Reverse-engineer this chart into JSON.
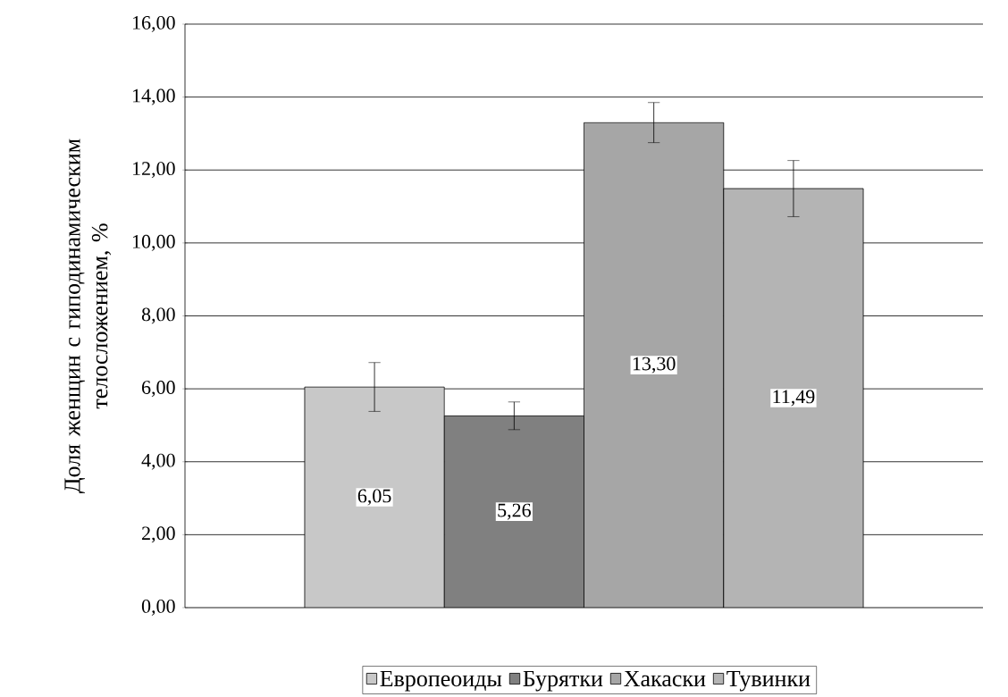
{
  "chart_data": {
    "type": "bar",
    "ylabel": "Доля женщин с гиподинамическим телосложением, %",
    "categories": [
      null
    ],
    "series": [
      {
        "name": "Европеоиды",
        "color": "#c8c8c8",
        "values": [
          6.05
        ],
        "errors": [
          0.67
        ],
        "value_labels": [
          "6,05"
        ]
      },
      {
        "name": "Бурятки",
        "color": "#808080",
        "values": [
          5.26
        ],
        "errors": [
          0.38
        ],
        "value_labels": [
          "5,26"
        ]
      },
      {
        "name": "Хакаски",
        "color": "#a6a6a6",
        "values": [
          13.3
        ],
        "errors": [
          0.55
        ],
        "value_labels": [
          "13,30"
        ]
      },
      {
        "name": "Тувинки",
        "color": "#b4b4b4",
        "values": [
          11.49
        ],
        "errors": [
          0.77
        ],
        "value_labels": [
          "11,49"
        ]
      }
    ],
    "ylim": [
      0,
      16
    ],
    "yticks": [
      {
        "value": 0,
        "label": "0,00"
      },
      {
        "value": 2,
        "label": "2,00"
      },
      {
        "value": 4,
        "label": "4,00"
      },
      {
        "value": 6,
        "label": "6,00"
      },
      {
        "value": 8,
        "label": "8,00"
      },
      {
        "value": 10,
        "label": "10,00"
      },
      {
        "value": 12,
        "label": "12,00"
      },
      {
        "value": 14,
        "label": "14,00"
      },
      {
        "value": 16,
        "label": "16,00"
      }
    ],
    "grid": "y",
    "legend": "bottom"
  }
}
